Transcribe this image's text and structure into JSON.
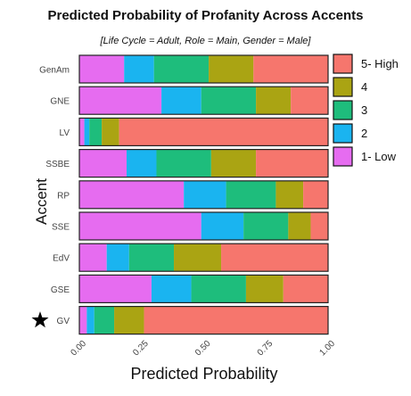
{
  "chart_data": {
    "type": "bar",
    "orientation": "horizontal",
    "stacked": true,
    "title": "Predicted Probability of Profanity Across Accents",
    "subtitle": "[Life Cycle = Adult, Role = Main, Gender = Male]",
    "xlabel": "Predicted Probability",
    "ylabel": "Accent",
    "xlim": [
      0,
      1
    ],
    "xticks": [
      "0.00",
      "0.25",
      "0.50",
      "0.75",
      "1.00"
    ],
    "categories": [
      "GenAm",
      "GNE",
      "LV",
      "SSBE",
      "RP",
      "SSE",
      "EdV",
      "GSE",
      "GV"
    ],
    "marked_category": "GV",
    "series": [
      {
        "name": "1- Low",
        "color": "#e66cf0",
        "values": [
          0.18,
          0.33,
          0.02,
          0.19,
          0.42,
          0.49,
          0.11,
          0.29,
          0.03
        ]
      },
      {
        "name": "2",
        "color": "#1ab4f0",
        "values": [
          0.12,
          0.16,
          0.02,
          0.12,
          0.17,
          0.17,
          0.09,
          0.16,
          0.03
        ]
      },
      {
        "name": "3",
        "color": "#1ebd7c",
        "values": [
          0.22,
          0.22,
          0.05,
          0.22,
          0.2,
          0.18,
          0.18,
          0.22,
          0.08
        ]
      },
      {
        "name": "4",
        "color": "#aaa413",
        "values": [
          0.18,
          0.14,
          0.07,
          0.18,
          0.11,
          0.09,
          0.19,
          0.15,
          0.12
        ]
      },
      {
        "name": "5- High",
        "color": "#f6766d",
        "values": [
          0.3,
          0.15,
          0.84,
          0.29,
          0.1,
          0.07,
          0.43,
          0.18,
          0.74
        ]
      }
    ],
    "legend": {
      "placement": "right",
      "order": [
        "5- High",
        "4",
        "3",
        "2",
        "1- Low"
      ]
    },
    "grid": false
  }
}
